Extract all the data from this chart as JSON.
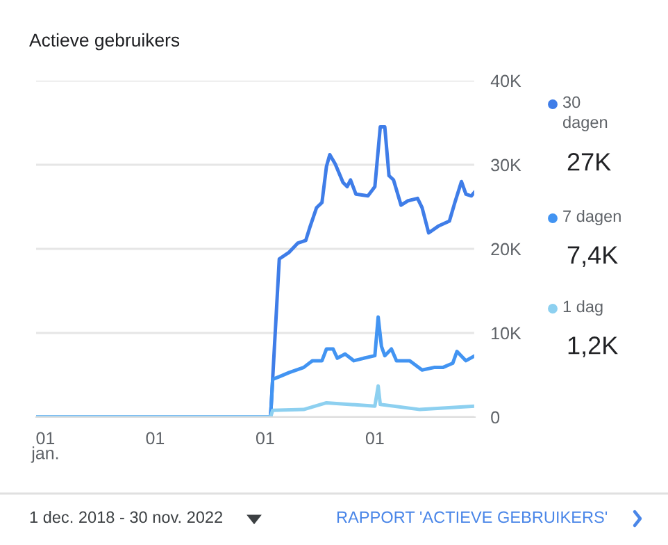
{
  "chart_data": {
    "type": "line",
    "title": "Actieve gebruikers",
    "xlim": [
      "2018-12-01",
      "2022-11-30"
    ],
    "xticks": [
      {
        "value": "2019-01-01",
        "label": "01\njan."
      },
      {
        "value": "2020-01-01",
        "label": "01"
      },
      {
        "value": "2021-01-01",
        "label": "01"
      },
      {
        "value": "2022-01-01",
        "label": "01"
      }
    ],
    "ylim": [
      0,
      40000
    ],
    "yticks": [
      {
        "value": 0,
        "label": "0"
      },
      {
        "value": 10000,
        "label": "10K"
      },
      {
        "value": 20000,
        "label": "20K"
      },
      {
        "value": 30000,
        "label": "30K"
      },
      {
        "value": 40000,
        "label": "40K"
      }
    ],
    "grid": "y",
    "legend": "right",
    "marker": "none",
    "line_style": "solid",
    "series": [
      {
        "name": "30 dagen",
        "color": "#3f7de8",
        "x": [
          "2018-12-01",
          "2021-01-19",
          "2021-02-17",
          "2021-03-22",
          "2021-04-20",
          "2021-05-16",
          "2021-05-31",
          "2021-06-21",
          "2021-07-09",
          "2021-07-24",
          "2021-08-04",
          "2021-08-22",
          "2021-09-17",
          "2021-10-01",
          "2021-10-12",
          "2021-10-30",
          "2021-12-09",
          "2022-01-01",
          "2022-01-19",
          "2022-02-03",
          "2022-02-17",
          "2022-03-04",
          "2022-03-29",
          "2022-04-20",
          "2022-05-23",
          "2022-06-07",
          "2022-06-29",
          "2022-07-31",
          "2022-09-06",
          "2022-09-24",
          "2022-10-16",
          "2022-10-31",
          "2022-11-18",
          "2022-11-30"
        ],
        "values": [
          0,
          0,
          18800,
          19600,
          20700,
          21000,
          22700,
          24900,
          25500,
          29800,
          31200,
          30100,
          27900,
          27400,
          28200,
          26500,
          26300,
          27400,
          34500,
          34500,
          28700,
          28200,
          25200,
          25700,
          26000,
          24900,
          21900,
          22700,
          23300,
          25500,
          28000,
          26500,
          26300,
          26800
        ]
      },
      {
        "name": "7 dagen",
        "color": "#4294f2",
        "x": [
          "2018-12-01",
          "2021-01-19",
          "2021-01-26",
          "2021-02-17",
          "2021-03-22",
          "2021-05-09",
          "2021-06-07",
          "2021-07-09",
          "2021-07-24",
          "2021-08-15",
          "2021-08-29",
          "2021-09-24",
          "2021-10-23",
          "2021-11-25",
          "2022-01-01",
          "2022-01-12",
          "2022-01-23",
          "2022-02-03",
          "2022-02-25",
          "2022-03-14",
          "2022-04-27",
          "2022-06-07",
          "2022-07-17",
          "2022-08-15",
          "2022-09-17",
          "2022-10-01",
          "2022-10-31",
          "2022-11-30"
        ],
        "values": [
          0,
          0,
          4500,
          4800,
          5300,
          5900,
          6700,
          6700,
          8100,
          8100,
          7000,
          7500,
          6700,
          7000,
          7300,
          11900,
          8400,
          7300,
          8100,
          6700,
          6700,
          5600,
          5900,
          5900,
          6400,
          7800,
          6700,
          7300
        ]
      },
      {
        "name": "1 dag",
        "color": "#8dd0f0",
        "x": [
          "2018-12-01",
          "2021-01-19",
          "2021-01-26",
          "2021-05-09",
          "2021-07-24",
          "2022-01-01",
          "2022-01-12",
          "2022-01-19",
          "2022-05-31",
          "2022-11-30"
        ],
        "values": [
          0,
          0,
          800,
          900,
          1700,
          1300,
          3700,
          1500,
          900,
          1300
        ]
      }
    ],
    "annotations": [
      "27K",
      "7,4K",
      "1,2K",
      "1 dec. 2018 - 30 nov. 2022",
      "RAPPORT 'ACTIEVE GEBRUIKERS'"
    ]
  }
}
